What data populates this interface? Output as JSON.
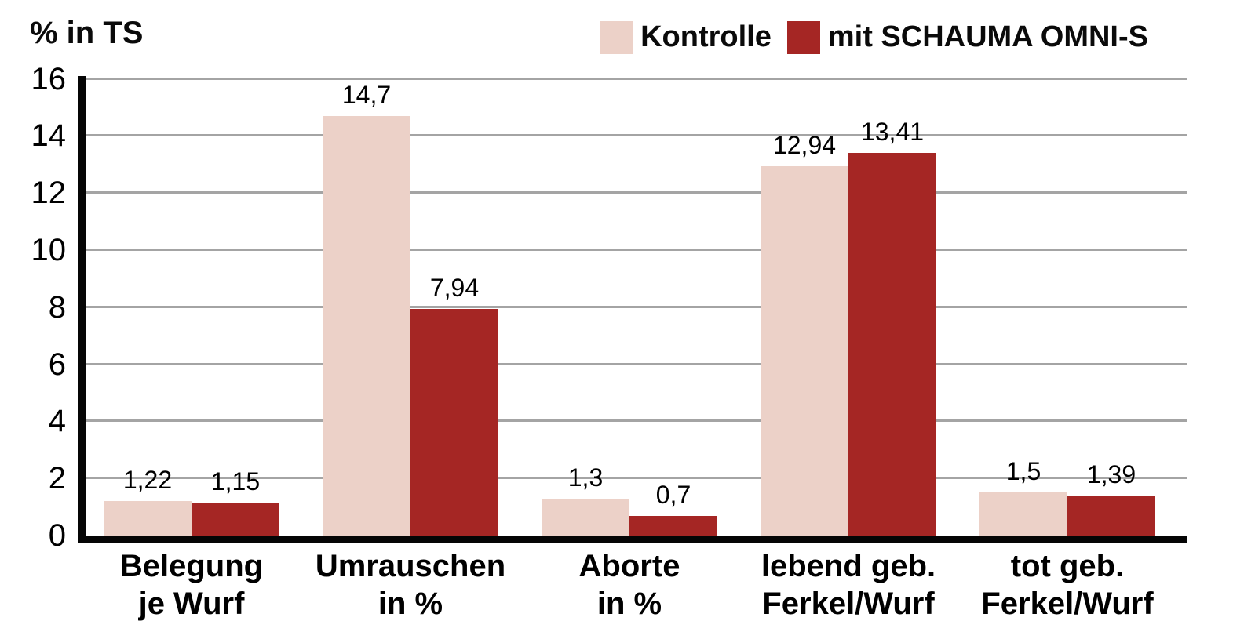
{
  "chart_data": {
    "type": "bar",
    "title": "",
    "ylabel": "% in TS",
    "xlabel": "",
    "categories": [
      [
        "Belegung",
        "je Wurf"
      ],
      [
        "Umrauschen",
        "in %"
      ],
      [
        "Aborte",
        "in %"
      ],
      [
        "lebend geb.",
        "Ferkel/Wurf"
      ],
      [
        "tot geb.",
        "Ferkel/Wurf"
      ]
    ],
    "series": [
      {
        "name": "Kontrolle",
        "color": "#ecd1c8",
        "values": [
          1.22,
          14.7,
          1.3,
          12.94,
          1.5
        ],
        "value_labels": [
          "1,22",
          "14,7",
          "1,3",
          "12,94",
          "1,5"
        ]
      },
      {
        "name": "mit SCHAUMA OMNI-S",
        "color": "#a52624",
        "values": [
          1.15,
          7.94,
          0.7,
          13.41,
          1.39
        ],
        "value_labels": [
          "1,15",
          "7,94",
          "0,7",
          "13,41",
          "1,39"
        ]
      }
    ],
    "ylim": [
      0,
      16
    ],
    "yticks": [
      0,
      2,
      4,
      6,
      8,
      10,
      12,
      14,
      16
    ],
    "grid": true,
    "grid_color": "#a4a4a4",
    "axis_color": "#050505",
    "legend_position": "top-right"
  }
}
